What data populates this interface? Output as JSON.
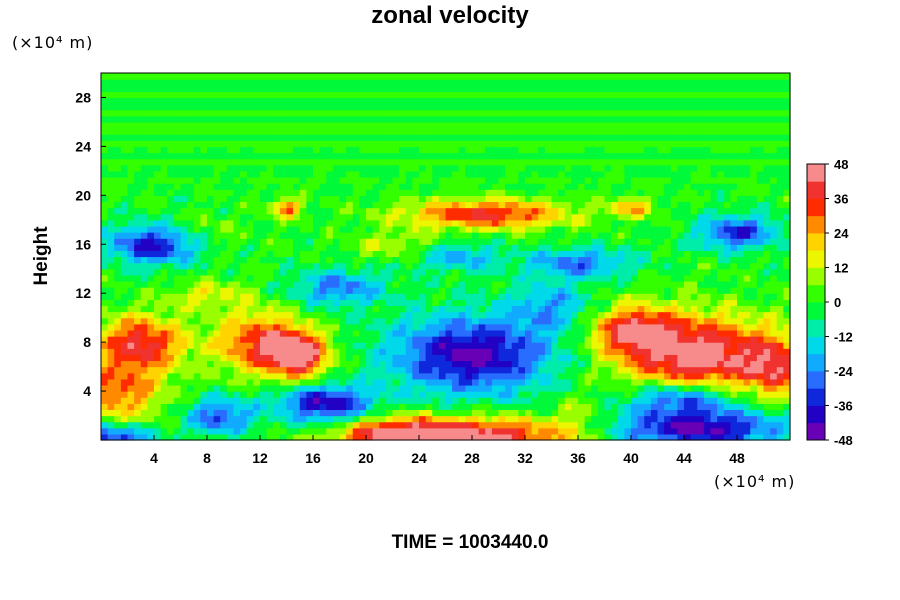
{
  "chart_data": {
    "type": "heatmap",
    "title": "zonal velocity",
    "ylabel": "Height",
    "xunit": "(×10⁴ m)",
    "yunit": "(×10⁴ m)",
    "footer": "TIME = 1003440.0",
    "xlim": [
      0,
      52
    ],
    "ylim": [
      0,
      30
    ],
    "xticks": [
      "4",
      "8",
      "12",
      "16",
      "20",
      "24",
      "28",
      "32",
      "36",
      "40",
      "44",
      "48"
    ],
    "xtick_values": [
      4,
      8,
      12,
      16,
      20,
      24,
      28,
      32,
      36,
      40,
      44,
      48
    ],
    "yticks": [
      "4",
      "8",
      "12",
      "16",
      "20",
      "24",
      "28"
    ],
    "ytick_values": [
      4,
      8,
      12,
      16,
      20,
      24,
      28
    ],
    "colorbar": {
      "min": -48,
      "max": 48,
      "step": 6,
      "ticks": [
        "48",
        "36",
        "24",
        "12",
        "0",
        "-12",
        "-24",
        "-36",
        "-48"
      ],
      "tick_values": [
        48,
        36,
        24,
        12,
        0,
        -12,
        -24,
        -36,
        -48
      ]
    },
    "features": [
      {
        "x": 3,
        "y": 8,
        "v": 40,
        "rx": 3.2,
        "ry": 2.2
      },
      {
        "x": 1,
        "y": 4,
        "v": 30,
        "rx": 3.5,
        "ry": 2.5
      },
      {
        "x": 12,
        "y": 8,
        "v": 36,
        "rx": 3.5,
        "ry": 2.5
      },
      {
        "x": 15,
        "y": 7,
        "v": 44,
        "rx": 2.2,
        "ry": 1.8
      },
      {
        "x": 28,
        "y": 0.3,
        "v": 48,
        "rx": 7.5,
        "ry": 1.6
      },
      {
        "x": 22,
        "y": 0.5,
        "v": 30,
        "rx": 4,
        "ry": 1.3
      },
      {
        "x": 29,
        "y": 18.5,
        "v": 38,
        "rx": 6,
        "ry": 1.2
      },
      {
        "x": 14,
        "y": 19,
        "v": 30,
        "rx": 1,
        "ry": 0.8
      },
      {
        "x": 40,
        "y": 19,
        "v": 24,
        "rx": 1.8,
        "ry": 0.8
      },
      {
        "x": 45,
        "y": 7,
        "v": 48,
        "rx": 5.5,
        "ry": 3.2
      },
      {
        "x": 40,
        "y": 9,
        "v": 36,
        "rx": 3,
        "ry": 2
      },
      {
        "x": 51,
        "y": 6,
        "v": 30,
        "rx": 2.5,
        "ry": 2.5
      },
      {
        "x": 28,
        "y": 7,
        "v": -44,
        "rx": 6,
        "ry": 3.2
      },
      {
        "x": 34,
        "y": 11,
        "v": -20,
        "rx": 3,
        "ry": 2
      },
      {
        "x": 17,
        "y": 3,
        "v": -42,
        "rx": 3.5,
        "ry": 1.5
      },
      {
        "x": 9,
        "y": 2,
        "v": -30,
        "rx": 2.5,
        "ry": 1.5
      },
      {
        "x": 45,
        "y": 1,
        "v": -46,
        "rx": 6.5,
        "ry": 1.6
      },
      {
        "x": 44,
        "y": 3.5,
        "v": -35,
        "rx": 4,
        "ry": 1.3
      },
      {
        "x": 4,
        "y": 16,
        "v": -38,
        "rx": 3.5,
        "ry": 1.6
      },
      {
        "x": 18,
        "y": 12.5,
        "v": -26,
        "rx": 3.5,
        "ry": 1.5
      },
      {
        "x": 48,
        "y": 17,
        "v": -34,
        "rx": 3,
        "ry": 1.4
      },
      {
        "x": 36,
        "y": 14.5,
        "v": -26,
        "rx": 4,
        "ry": 1.2
      },
      {
        "x": 27,
        "y": 15,
        "v": -20,
        "rx": 3,
        "ry": 1.2
      },
      {
        "x": 8,
        "y": 12,
        "v": 14,
        "rx": 3,
        "ry": 1.2
      },
      {
        "x": 22,
        "y": 16,
        "v": 12,
        "rx": 3,
        "ry": 1.2
      },
      {
        "x": 0.5,
        "y": 0.3,
        "v": -40,
        "rx": 3,
        "ry": 1
      },
      {
        "x": 36,
        "y": 2,
        "v": 10,
        "rx": 2,
        "ry": 2
      },
      {
        "x": 8,
        "y": 17,
        "v": 8,
        "rx": 3,
        "ry": 1.5
      }
    ]
  }
}
